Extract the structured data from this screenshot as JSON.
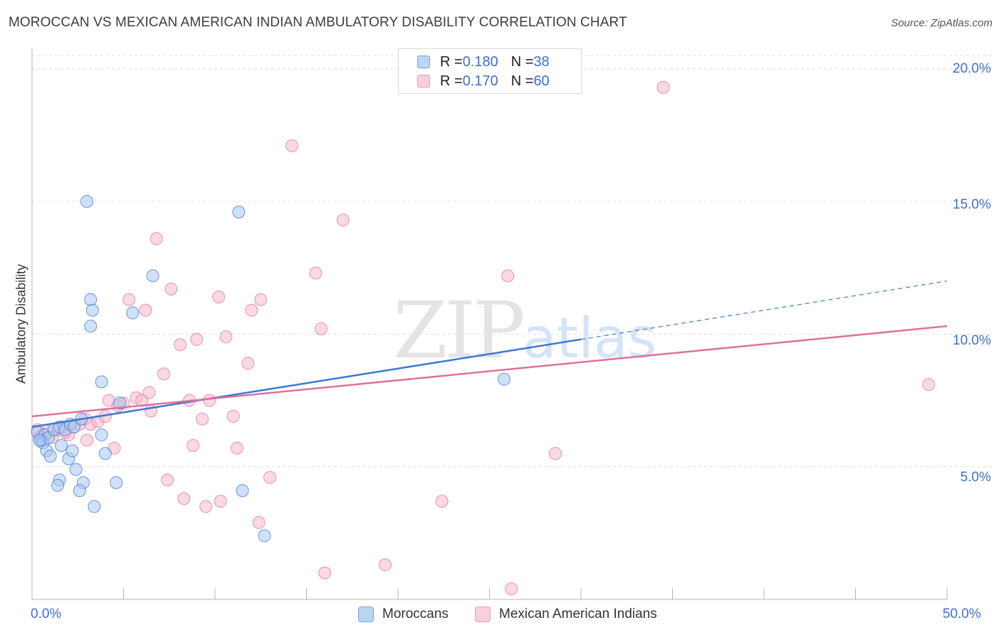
{
  "header": {
    "title": "MOROCCAN VS MEXICAN AMERICAN INDIAN AMBULATORY DISABILITY CORRELATION CHART",
    "source": "Source: ZipAtlas.com"
  },
  "watermark": {
    "zip": "ZIP",
    "atlas": "atlas"
  },
  "legend_top": {
    "rows": [
      {
        "r_label": "R = ",
        "r_value": "0.180",
        "n_label": "N = ",
        "n_value": "38",
        "color": "#a9c8f0"
      },
      {
        "r_label": "R = ",
        "r_value": "0.170",
        "n_label": "N = ",
        "n_value": "60",
        "color": "#f6b9cc"
      }
    ]
  },
  "legend_bottom": {
    "items": [
      "Moroccans",
      "Mexican American Indians"
    ]
  },
  "chart_data": {
    "type": "scatter",
    "title": "MOROCCAN VS MEXICAN AMERICAN INDIAN AMBULATORY DISABILITY CORRELATION CHART",
    "xlabel": "",
    "ylabel": "Ambulatory Disability",
    "xlim": [
      0,
      50
    ],
    "ylim": [
      0,
      20.5
    ],
    "x_tick_labels": [
      "0.0%",
      "50.0%"
    ],
    "y_ticks": [
      5,
      10,
      15,
      20
    ],
    "y_tick_labels": [
      "5.0%",
      "10.0%",
      "15.0%",
      "20.0%"
    ],
    "grid": true,
    "legend_position": "top-center",
    "colors": {
      "moroccans": "#3a78d6",
      "mexican_american_indians": "#e0709a"
    },
    "series": [
      {
        "name": "Moroccans",
        "color": "#3a78d6",
        "fill": "#a9c8f0",
        "points": [
          [
            0.3,
            6.3
          ],
          [
            0.5,
            6.0
          ],
          [
            0.7,
            6.2
          ],
          [
            0.6,
            5.9
          ],
          [
            0.9,
            6.1
          ],
          [
            1.2,
            6.4
          ],
          [
            1.5,
            6.5
          ],
          [
            1.8,
            6.4
          ],
          [
            2.1,
            6.6
          ],
          [
            2.3,
            6.5
          ],
          [
            2.7,
            6.8
          ],
          [
            0.8,
            5.6
          ],
          [
            1.0,
            5.4
          ],
          [
            1.6,
            5.8
          ],
          [
            2.0,
            5.3
          ],
          [
            2.2,
            5.6
          ],
          [
            2.4,
            4.9
          ],
          [
            1.5,
            4.5
          ],
          [
            1.4,
            4.3
          ],
          [
            2.8,
            4.4
          ],
          [
            2.6,
            4.1
          ],
          [
            3.4,
            3.5
          ],
          [
            3.8,
            6.2
          ],
          [
            4.0,
            5.5
          ],
          [
            3.0,
            15.0
          ],
          [
            3.2,
            11.3
          ],
          [
            3.3,
            10.9
          ],
          [
            3.2,
            10.3
          ],
          [
            3.8,
            8.2
          ],
          [
            4.6,
            4.4
          ],
          [
            4.8,
            7.4
          ],
          [
            5.5,
            10.8
          ],
          [
            6.6,
            12.2
          ],
          [
            11.3,
            14.6
          ],
          [
            11.5,
            4.1
          ],
          [
            12.7,
            2.4
          ],
          [
            25.8,
            8.3
          ],
          [
            0.4,
            6.0
          ]
        ],
        "trend": {
          "x": [
            0,
            30
          ],
          "y": [
            6.5,
            9.8
          ],
          "dashed_extension": {
            "x": [
              30,
              50
            ],
            "y": [
              9.8,
              12.0
            ]
          }
        }
      },
      {
        "name": "Mexican American Indians",
        "color": "#e0709a",
        "fill": "#f6b9cc",
        "points": [
          [
            0.3,
            6.4
          ],
          [
            0.6,
            6.2
          ],
          [
            0.9,
            6.3
          ],
          [
            1.1,
            6.1
          ],
          [
            1.4,
            6.4
          ],
          [
            1.7,
            6.5
          ],
          [
            2.0,
            6.2
          ],
          [
            2.3,
            6.5
          ],
          [
            2.6,
            6.6
          ],
          [
            2.9,
            6.8
          ],
          [
            3.2,
            6.6
          ],
          [
            3.6,
            6.7
          ],
          [
            4.0,
            6.9
          ],
          [
            4.2,
            7.5
          ],
          [
            4.5,
            5.7
          ],
          [
            4.7,
            7.3
          ],
          [
            5.3,
            11.3
          ],
          [
            5.7,
            7.6
          ],
          [
            6.0,
            7.5
          ],
          [
            6.2,
            10.9
          ],
          [
            6.4,
            7.8
          ],
          [
            6.5,
            7.1
          ],
          [
            6.8,
            13.6
          ],
          [
            7.2,
            8.5
          ],
          [
            7.4,
            4.5
          ],
          [
            7.6,
            11.7
          ],
          [
            8.1,
            9.6
          ],
          [
            8.3,
            3.8
          ],
          [
            8.6,
            7.5
          ],
          [
            8.8,
            5.8
          ],
          [
            9.0,
            9.8
          ],
          [
            9.3,
            6.8
          ],
          [
            9.5,
            3.5
          ],
          [
            9.7,
            7.5
          ],
          [
            10.2,
            11.4
          ],
          [
            10.3,
            3.7
          ],
          [
            10.6,
            9.9
          ],
          [
            11.0,
            6.9
          ],
          [
            11.2,
            5.7
          ],
          [
            11.8,
            8.9
          ],
          [
            12.0,
            10.9
          ],
          [
            12.4,
            2.9
          ],
          [
            12.5,
            11.3
          ],
          [
            13.0,
            4.6
          ],
          [
            14.2,
            17.1
          ],
          [
            15.5,
            12.3
          ],
          [
            15.8,
            10.2
          ],
          [
            16.0,
            1.0
          ],
          [
            17.0,
            14.3
          ],
          [
            19.3,
            1.3
          ],
          [
            22.4,
            3.7
          ],
          [
            26.0,
            12.2
          ],
          [
            26.2,
            0.4
          ],
          [
            28.6,
            5.5
          ],
          [
            34.5,
            19.3
          ],
          [
            49.0,
            8.1
          ],
          [
            0.4,
            6.1
          ],
          [
            1.8,
            6.3
          ],
          [
            3.0,
            6.0
          ],
          [
            5.0,
            7.4
          ]
        ],
        "trend": {
          "x": [
            0,
            50
          ],
          "y": [
            6.9,
            10.3
          ]
        }
      }
    ]
  }
}
